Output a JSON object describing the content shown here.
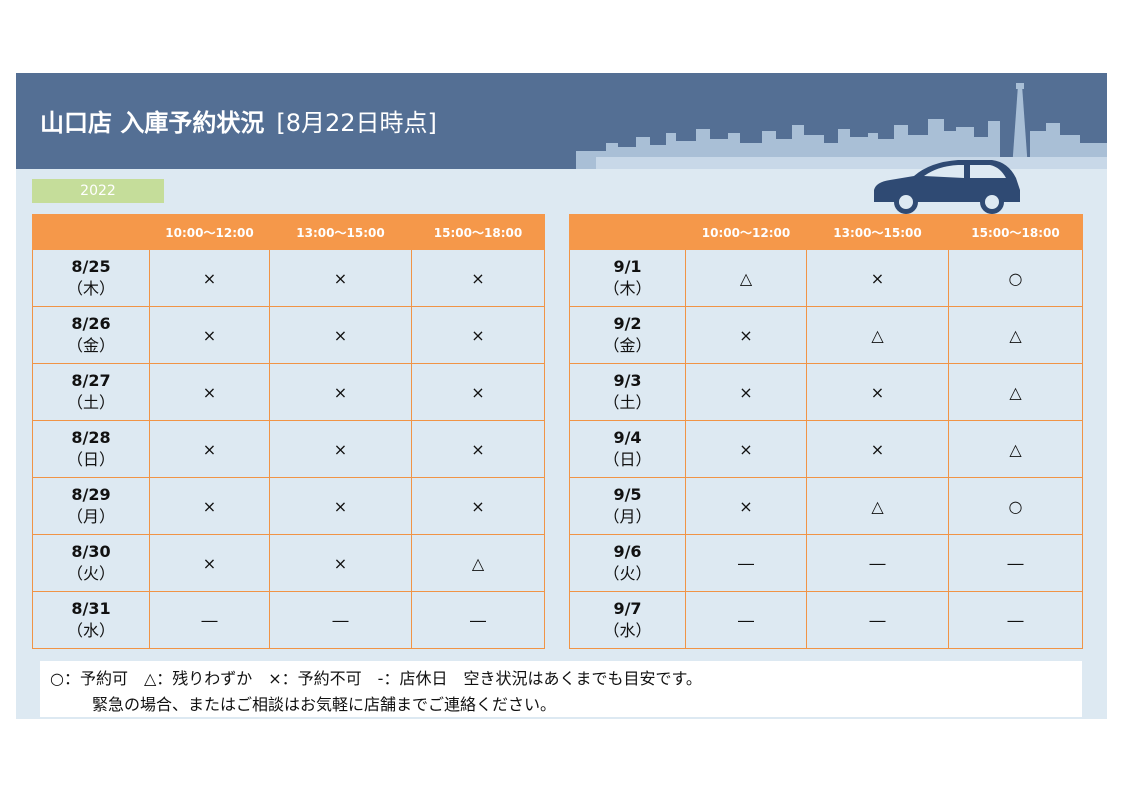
{
  "header": {
    "store_title": "山口店 入庫予約状況",
    "as_of": "[8月22日時点]"
  },
  "year_label": "2022",
  "time_slots": [
    "10:00～12:00",
    "13:00～15:00",
    "15:00～18:00"
  ],
  "left_table": {
    "rows": [
      {
        "date": "8/25",
        "dow": "（木）",
        "weekend": false,
        "slots": [
          "×",
          "×",
          "×"
        ]
      },
      {
        "date": "8/26",
        "dow": "（金）",
        "weekend": false,
        "slots": [
          "×",
          "×",
          "×"
        ]
      },
      {
        "date": "8/27",
        "dow": "（土）",
        "weekend": true,
        "slots": [
          "×",
          "×",
          "×"
        ]
      },
      {
        "date": "8/28",
        "dow": "（日）",
        "weekend": true,
        "slots": [
          "×",
          "×",
          "×"
        ]
      },
      {
        "date": "8/29",
        "dow": "（月）",
        "weekend": false,
        "slots": [
          "×",
          "×",
          "×"
        ]
      },
      {
        "date": "8/30",
        "dow": "（火）",
        "weekend": false,
        "slots": [
          "×",
          "×",
          "△"
        ]
      },
      {
        "date": "8/31",
        "dow": "（水）",
        "weekend": false,
        "slots": [
          "―",
          "―",
          "―"
        ]
      }
    ]
  },
  "right_table": {
    "rows": [
      {
        "date": "9/1",
        "dow": "（木）",
        "weekend": false,
        "slots": [
          "△",
          "×",
          "○"
        ]
      },
      {
        "date": "9/2",
        "dow": "（金）",
        "weekend": false,
        "slots": [
          "×",
          "△",
          "△"
        ]
      },
      {
        "date": "9/3",
        "dow": "（土）",
        "weekend": true,
        "slots": [
          "×",
          "×",
          "△"
        ]
      },
      {
        "date": "9/4",
        "dow": "（日）",
        "weekend": true,
        "slots": [
          "×",
          "×",
          "△"
        ]
      },
      {
        "date": "9/5",
        "dow": "（月）",
        "weekend": false,
        "slots": [
          "×",
          "△",
          "○"
        ]
      },
      {
        "date": "9/6",
        "dow": "（火）",
        "weekend": false,
        "slots": [
          "―",
          "―",
          "―"
        ]
      },
      {
        "date": "9/7",
        "dow": "（水）",
        "weekend": false,
        "slots": [
          "―",
          "―",
          "―"
        ]
      }
    ]
  },
  "legend": {
    "line1": "○：予約可　△：残りわずか　×：予約不可　-：店休日　空き状況はあくまでも目安です。",
    "line2": "緊急の場合、またはご相談はお気軽に店舗までご連絡ください。"
  },
  "colors": {
    "header_bg": "#546f94",
    "panel_bg": "#dde9f2",
    "table_header": "#f5984a",
    "weekend_text": "#c00000",
    "year_tag": "#c5dd9a"
  }
}
